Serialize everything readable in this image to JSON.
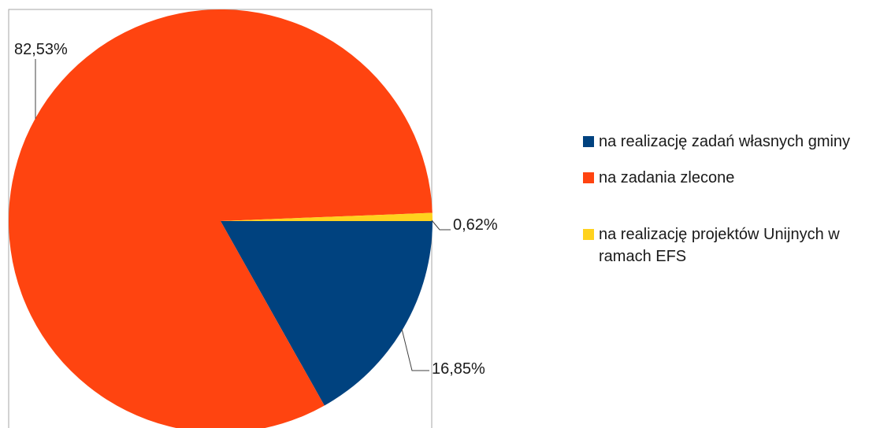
{
  "chart_data": {
    "type": "pie",
    "title": "",
    "slices": [
      {
        "label": "na realizację zadań własnych gminy",
        "value": 16.85,
        "value_label": "16,85%",
        "color": "#00427F"
      },
      {
        "label": "na zadania zlecone",
        "value": 82.53,
        "value_label": "82,53%",
        "color": "#FF4410"
      },
      {
        "label": "na realizację projektów Unijnych w ramach EFS",
        "value": 0.62,
        "value_label": "0,62%",
        "color": "#FFD21E"
      }
    ],
    "legend_position": "right"
  }
}
